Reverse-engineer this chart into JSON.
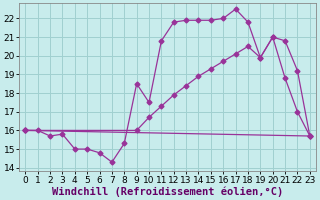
{
  "xlabel": "Windchill (Refroidissement éolien,°C)",
  "bg_color": "#c8ecec",
  "grid_color": "#a0d0d0",
  "line_color": "#993399",
  "xlim": [
    -0.5,
    23.5
  ],
  "ylim": [
    13.8,
    22.8
  ],
  "xticks": [
    0,
    1,
    2,
    3,
    4,
    5,
    6,
    7,
    8,
    9,
    10,
    11,
    12,
    13,
    14,
    15,
    16,
    17,
    18,
    19,
    20,
    21,
    22,
    23
  ],
  "yticks": [
    14,
    15,
    16,
    17,
    18,
    19,
    20,
    21,
    22
  ],
  "line1_x": [
    0,
    1,
    2,
    3,
    4,
    5,
    6,
    7,
    8,
    9,
    10,
    11,
    12,
    13,
    14,
    15,
    16,
    17,
    18,
    19,
    20,
    21,
    22,
    23
  ],
  "line1_y": [
    16.0,
    16.0,
    15.7,
    15.8,
    15.0,
    15.0,
    14.8,
    14.3,
    15.3,
    18.5,
    17.5,
    20.8,
    21.8,
    21.9,
    21.9,
    21.9,
    22.0,
    22.5,
    21.8,
    19.9,
    21.0,
    18.8,
    17.0,
    15.7
  ],
  "line2_x": [
    0,
    23
  ],
  "line2_y": [
    16.0,
    15.7
  ],
  "line3_x": [
    0,
    9,
    10,
    11,
    12,
    13,
    14,
    15,
    16,
    17,
    18,
    19,
    20,
    21,
    22,
    23
  ],
  "line3_y": [
    16.0,
    16.0,
    16.7,
    17.3,
    17.9,
    18.4,
    18.9,
    19.3,
    19.7,
    20.1,
    20.5,
    19.9,
    21.0,
    20.8,
    19.2,
    15.7
  ],
  "marker": "D",
  "markersize": 2.5,
  "linewidth": 0.9,
  "xlabel_fontsize": 7.5,
  "tick_fontsize": 6.5
}
